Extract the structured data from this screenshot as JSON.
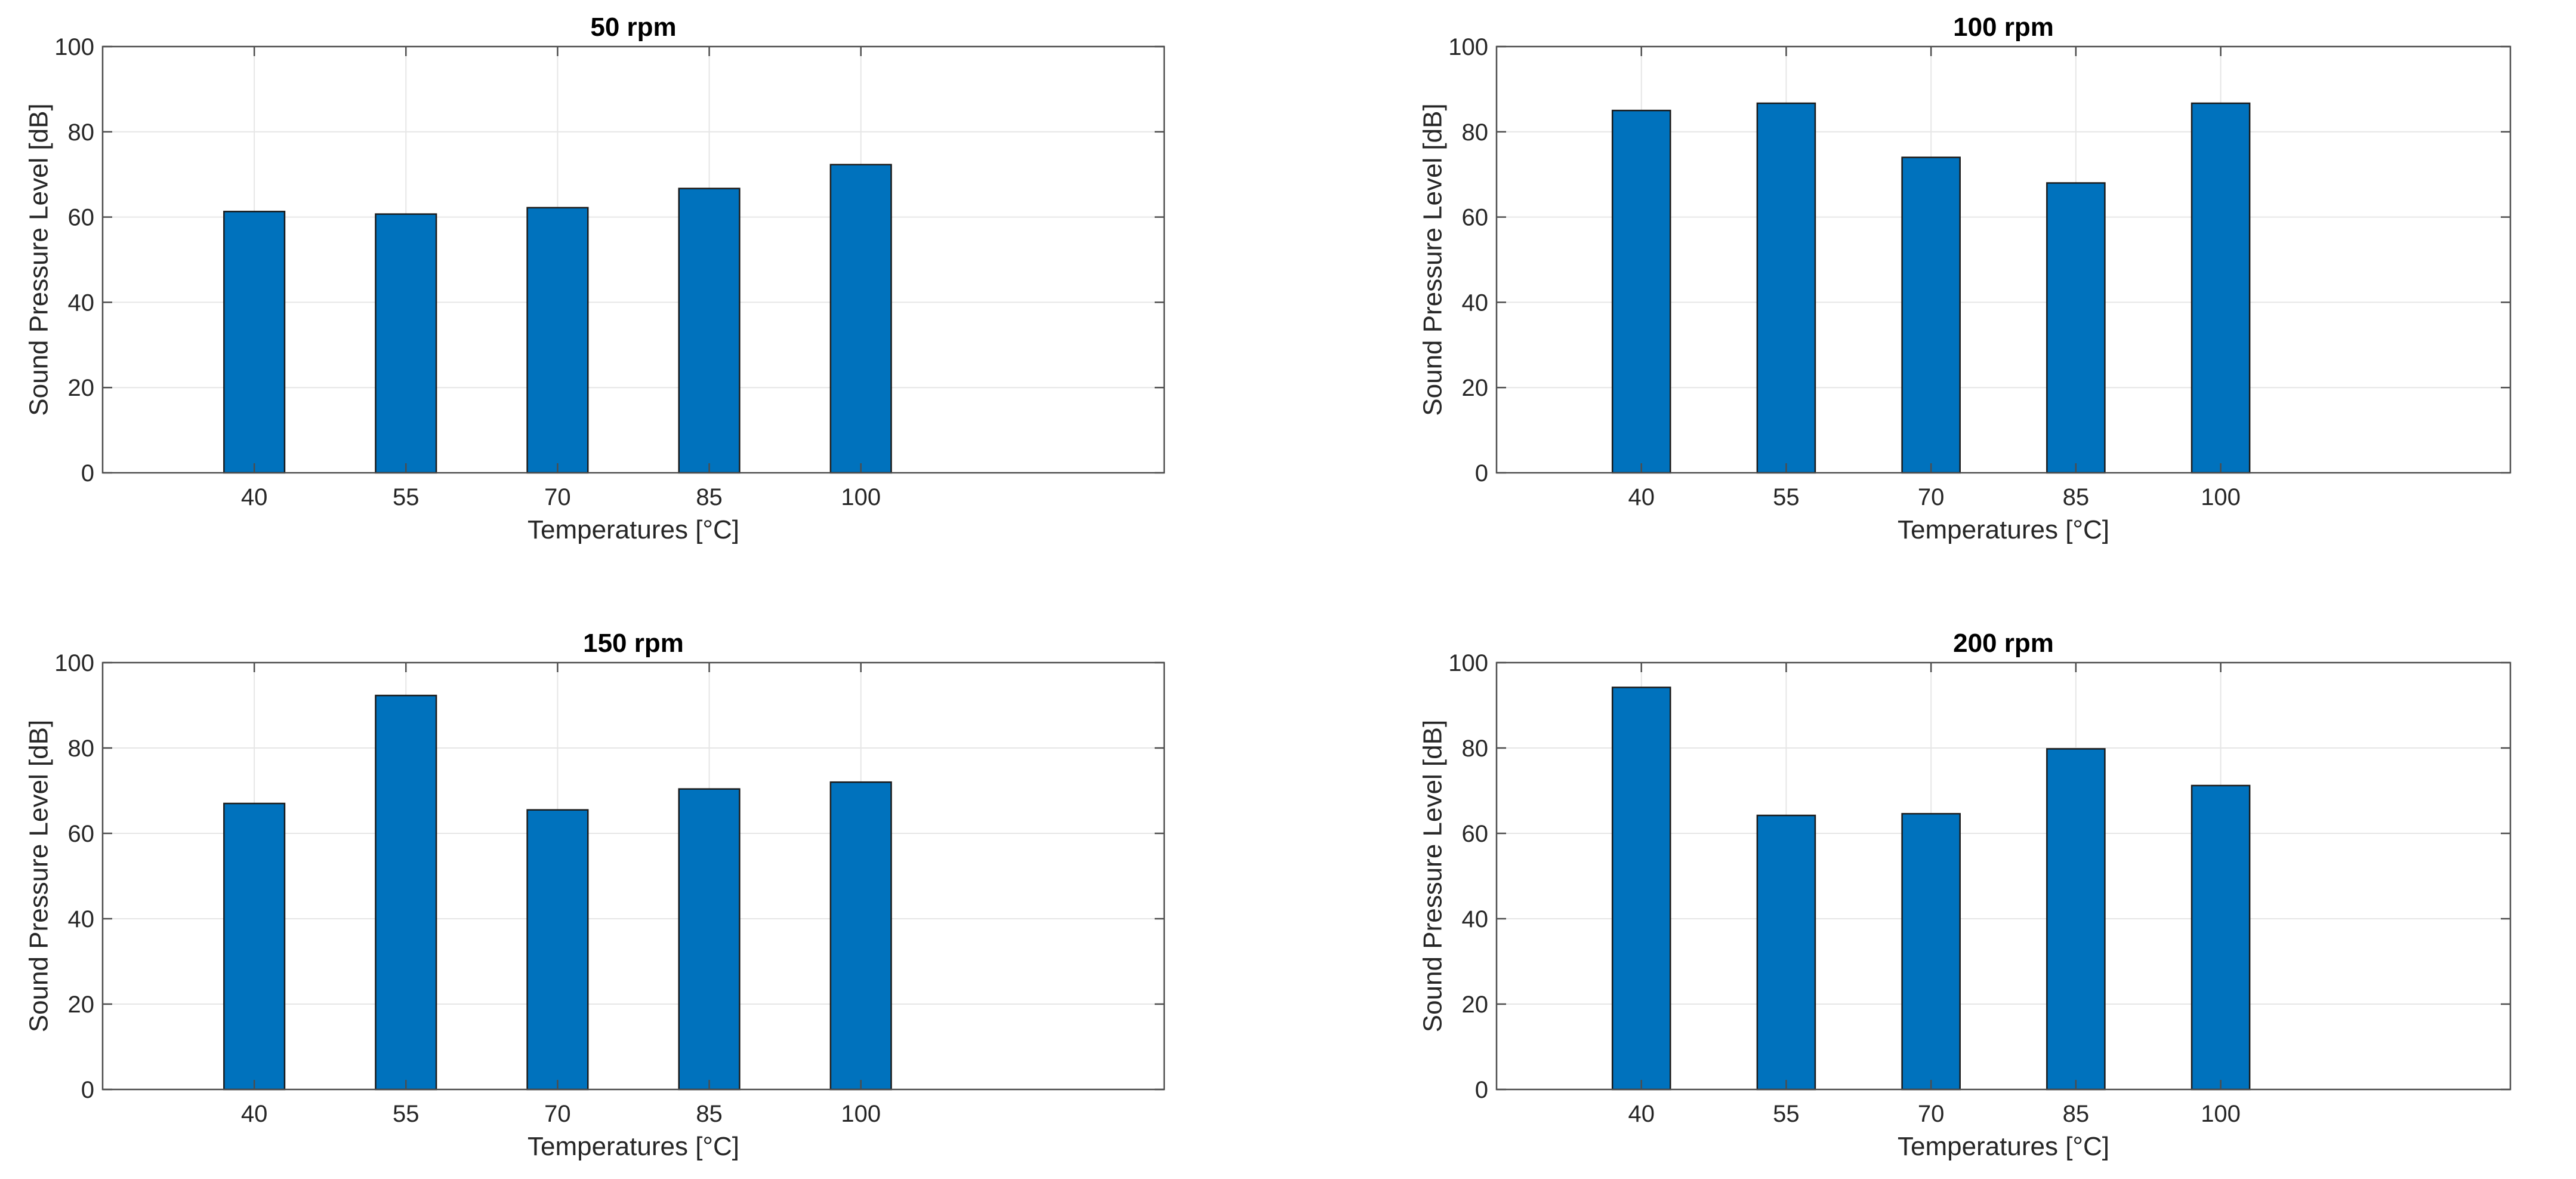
{
  "colors": {
    "bar_fill": "#0072BD",
    "bar_edge": "#1a1a1a",
    "axes": "#4d4d4d",
    "grid": "#e6e6e6",
    "text": "#262626"
  },
  "chart_data": [
    {
      "type": "bar",
      "title": "50 rpm",
      "xlabel": "Temperatures [°C]",
      "ylabel": "Sound Pressure Level [dB]",
      "categories": [
        "40",
        "55",
        "70",
        "85",
        "100"
      ],
      "values": [
        61.3,
        60.7,
        62.2,
        66.7,
        72.3
      ],
      "ylim": [
        0,
        100
      ],
      "yticks": [
        "0",
        "20",
        "40",
        "60",
        "80",
        "100"
      ],
      "grid": true,
      "legend": "none"
    },
    {
      "type": "bar",
      "title": "100 rpm",
      "xlabel": "Temperatures [°C]",
      "ylabel": "Sound Pressure Level [dB]",
      "categories": [
        "40",
        "55",
        "70",
        "85",
        "100"
      ],
      "values": [
        85.0,
        86.7,
        74.0,
        68.0,
        86.7
      ],
      "ylim": [
        0,
        100
      ],
      "yticks": [
        "0",
        "20",
        "40",
        "60",
        "80",
        "100"
      ],
      "grid": true,
      "legend": "none"
    },
    {
      "type": "bar",
      "title": "150 rpm",
      "xlabel": "Temperatures [°C]",
      "ylabel": "Sound Pressure Level [dB]",
      "categories": [
        "40",
        "55",
        "70",
        "85",
        "100"
      ],
      "values": [
        67.0,
        92.3,
        65.5,
        70.4,
        72.0
      ],
      "ylim": [
        0,
        100
      ],
      "yticks": [
        "0",
        "20",
        "40",
        "60",
        "80",
        "100"
      ],
      "grid": true,
      "legend": "none"
    },
    {
      "type": "bar",
      "title": "200 rpm",
      "xlabel": "Temperatures [°C]",
      "ylabel": "Sound Pressure Level [dB]",
      "categories": [
        "40",
        "55",
        "70",
        "85",
        "100"
      ],
      "values": [
        94.2,
        64.2,
        64.6,
        79.8,
        71.2
      ],
      "ylim": [
        0,
        100
      ],
      "yticks": [
        "0",
        "20",
        "40",
        "60",
        "80",
        "100"
      ],
      "grid": true,
      "legend": "none"
    }
  ]
}
